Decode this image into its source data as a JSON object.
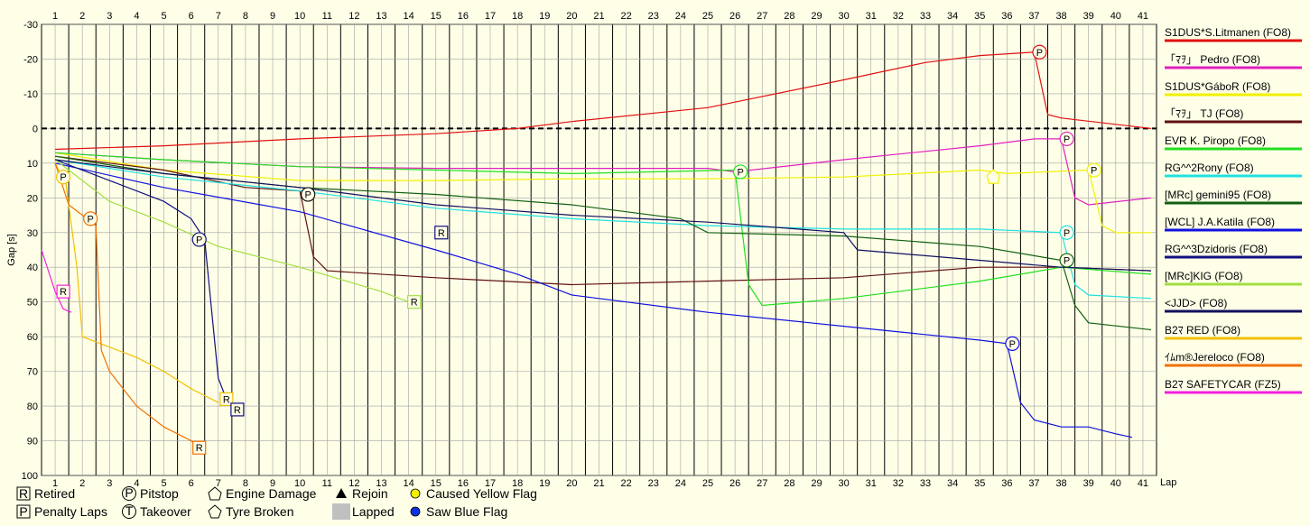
{
  "chart_data": {
    "type": "line",
    "ylabel": "Gap [s]",
    "xlabel": "Lap",
    "xlim": [
      0.5,
      41.5
    ],
    "ylim": [
      -30,
      100
    ],
    "y_inverted": true,
    "yticks": [
      -30,
      -20,
      -10,
      0,
      10,
      20,
      30,
      40,
      50,
      60,
      70,
      80,
      90,
      100
    ],
    "xticks": [
      1,
      2,
      3,
      4,
      5,
      6,
      7,
      8,
      9,
      10,
      11,
      12,
      13,
      14,
      15,
      16,
      17,
      18,
      19,
      20,
      21,
      22,
      23,
      24,
      25,
      26,
      27,
      28,
      29,
      30,
      31,
      32,
      33,
      34,
      35,
      36,
      37,
      38,
      39,
      40,
      41
    ],
    "grid": true,
    "legend_position": "right",
    "series": [
      {
        "name": "S1DUS*S.Litmanen (FO8)",
        "color": "#e01010",
        "x": [
          1,
          5,
          10,
          15,
          18,
          20,
          25,
          30,
          33,
          35,
          37,
          37.5,
          38,
          41.3
        ],
        "y": [
          6,
          5,
          3,
          1.5,
          0,
          -2,
          -6,
          -14,
          -19,
          -21,
          -22,
          -4,
          -3,
          0
        ]
      },
      {
        "name": "「ﾏｦ」 Pedro (FO8)",
        "color": "#e020c0",
        "x": [
          1,
          5,
          10,
          15,
          20,
          25,
          26,
          30,
          35,
          37,
          38,
          38.5,
          39,
          41.3
        ],
        "y": [
          7,
          9,
          11,
          11.5,
          11.5,
          11.5,
          12.5,
          9,
          5,
          3,
          3,
          20,
          22,
          20
        ]
      },
      {
        "name": "S1DUS*GáboR (FO8)",
        "color": "#f0f000",
        "x": [
          1,
          5,
          10,
          15,
          20,
          25,
          30,
          35,
          36,
          39,
          39.5,
          40,
          41.3
        ],
        "y": [
          7,
          12,
          15,
          15,
          14.5,
          14.5,
          14,
          12,
          13,
          12,
          28,
          30,
          30
        ]
      },
      {
        "name": "「ﾏｦ」 TJ (FO8)",
        "color": "#601010",
        "x": [
          1,
          5,
          8,
          10,
          10.5,
          11,
          15,
          20,
          25,
          30,
          35,
          38,
          41.3
        ],
        "y": [
          8,
          12,
          17,
          18,
          37,
          41,
          43,
          45,
          44,
          43,
          40,
          40,
          41
        ]
      },
      {
        "name": "EVR K. Piropo (FO8)",
        "color": "#20e020",
        "x": [
          1,
          5,
          10,
          15,
          20,
          26,
          26.5,
          27,
          30,
          35,
          38,
          41.3
        ],
        "y": [
          7,
          9,
          11,
          12,
          13,
          12,
          45,
          51,
          49,
          44,
          40,
          42
        ]
      },
      {
        "name": "RG^^2Rony (FO8)",
        "color": "#20e0e0",
        "x": [
          1,
          5,
          10,
          15,
          20,
          25,
          30,
          35,
          38,
          38.5,
          39,
          41.3
        ],
        "y": [
          9,
          14,
          18,
          23,
          26,
          28,
          29,
          29,
          30,
          45,
          48,
          49
        ]
      },
      {
        "name": "[MRc] gemini95 (FO8)",
        "color": "#106010",
        "x": [
          1,
          5,
          10,
          15,
          20,
          24,
          25,
          30,
          35,
          38,
          38.5,
          39,
          41.3
        ],
        "y": [
          8,
          13,
          17,
          19,
          22,
          26,
          30,
          31,
          34,
          38,
          51,
          56,
          58
        ]
      },
      {
        "name": "[WCL] J.A.Katila (FO8)",
        "color": "#1010e0",
        "x": [
          1,
          5,
          10,
          15,
          18,
          20,
          25,
          30,
          35,
          36,
          36.5,
          37,
          38,
          39,
          40,
          40.6
        ],
        "y": [
          10,
          17,
          24,
          35,
          42,
          48,
          53,
          57,
          61,
          62,
          79,
          84,
          86,
          86,
          88,
          89
        ]
      },
      {
        "name": "RG^^3Dzidoris (FO8)",
        "color": "#101080",
        "x": [
          1,
          3,
          5,
          6,
          6.5,
          7,
          7.3,
          7.6
        ],
        "y": [
          9,
          15,
          21,
          26,
          32,
          72,
          78,
          81
        ]
      },
      {
        "name": "[MRc]KIG (FO8)",
        "color": "#a0e040",
        "x": [
          1,
          3,
          5,
          7,
          10,
          13,
          14
        ],
        "y": [
          9,
          21,
          27,
          34,
          40,
          47,
          50
        ]
      },
      {
        "name": "<JJD> (FO8)",
        "color": "#101060",
        "x": [
          1,
          5,
          10,
          15,
          20,
          25,
          30,
          30.5,
          35,
          38,
          41.3
        ],
        "y": [
          9,
          13,
          17,
          22,
          25,
          27,
          30,
          35,
          38,
          40,
          41
        ]
      },
      {
        "name": "B2ﾏ RED (FO8)",
        "color": "#f0c000",
        "x": [
          1,
          1.4,
          1.8,
          2,
          3,
          4,
          5,
          6,
          6.5,
          7
        ],
        "y": [
          10,
          16,
          40,
          60,
          63,
          66,
          70,
          75,
          77,
          79
        ]
      },
      {
        "name": "ｲﾑm®Jereloco (FO8)",
        "color": "#f07000",
        "x": [
          1,
          1.5,
          2,
          2.5,
          2.7,
          3,
          4,
          5,
          6,
          6.3
        ],
        "y": [
          10,
          22,
          25,
          28,
          64,
          70,
          80,
          86,
          90,
          92
        ]
      },
      {
        "name": "B2ﾏ SAFETYCAR (FZ5)",
        "color": "#f020e0",
        "x": [
          0.5,
          1,
          1.3,
          1.6
        ],
        "y": [
          35,
          47,
          52,
          53
        ]
      }
    ],
    "markers": [
      {
        "type": "P",
        "x": 37.2,
        "y": -22,
        "color": "#e01010"
      },
      {
        "type": "P",
        "x": 38.2,
        "y": 3,
        "color": "#e020c0"
      },
      {
        "type": "P",
        "x": 39.2,
        "y": 12,
        "color": "#f0f000"
      },
      {
        "type": "P",
        "x": 10.3,
        "y": 19,
        "color": "#101010"
      },
      {
        "type": "P",
        "x": 26.2,
        "y": 12.5,
        "color": "#20e020"
      },
      {
        "type": "P",
        "x": 38.2,
        "y": 30,
        "color": "#20e0e0"
      },
      {
        "type": "P",
        "x": 38.2,
        "y": 38,
        "color": "#106010"
      },
      {
        "type": "P",
        "x": 36.2,
        "y": 62,
        "color": "#1010e0"
      },
      {
        "type": "P",
        "x": 6.3,
        "y": 32,
        "color": "#101080"
      },
      {
        "type": "P",
        "x": 2.3,
        "y": 26,
        "color": "#f07000"
      },
      {
        "type": "P",
        "x": 1.3,
        "y": 14,
        "color": "#f0c000"
      },
      {
        "type": "R",
        "x": 1.3,
        "y": 47,
        "color": "#f020e0"
      },
      {
        "type": "R",
        "x": 6.3,
        "y": 92,
        "color": "#f07000"
      },
      {
        "type": "R",
        "x": 7.3,
        "y": 78,
        "color": "#f0c000"
      },
      {
        "type": "R",
        "x": 7.7,
        "y": 81,
        "color": "#101080"
      },
      {
        "type": "R",
        "x": 14.2,
        "y": 50,
        "color": "#a0e040"
      },
      {
        "type": "R",
        "x": 15.2,
        "y": 30,
        "color": "#101080"
      },
      {
        "type": "E",
        "x": 35.5,
        "y": 14,
        "color": "#f0f000"
      }
    ]
  },
  "key": [
    {
      "symbol": "R-box",
      "label": "Retired"
    },
    {
      "symbol": "P-circle",
      "label": "Pitstop"
    },
    {
      "symbol": "engine",
      "label": "Engine Damage"
    },
    {
      "symbol": "triangle",
      "label": "Rejoin"
    },
    {
      "symbol": "yellow-dot",
      "label": "Caused Yellow Flag",
      "color": "#f0f000"
    },
    {
      "symbol": "P-box",
      "label": "Penalty Laps"
    },
    {
      "symbol": "T-circle",
      "label": "Takeover"
    },
    {
      "symbol": "tyre",
      "label": "Tyre Broken"
    },
    {
      "symbol": "grey-box",
      "label": "Lapped",
      "color": "#c0c0c0"
    },
    {
      "symbol": "blue-dot",
      "label": "Saw Blue Flag",
      "color": "#1030e0"
    }
  ]
}
